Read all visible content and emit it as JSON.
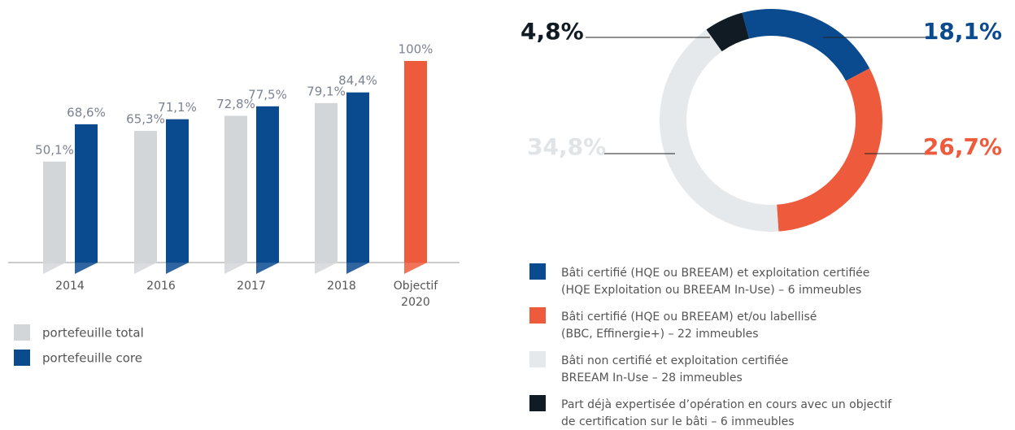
{
  "chart_data": [
    {
      "type": "bar",
      "categories": [
        "2014",
        "2016",
        "2017",
        "2018",
        [
          "Objectif",
          "2020"
        ]
      ],
      "series": [
        {
          "name": "portefeuille total",
          "color": "#d3d6d9",
          "values": [
            50.1,
            65.3,
            72.8,
            79.1,
            null
          ],
          "value_labels": [
            "50,1%",
            "65,3%",
            "72,8%",
            "79,1%",
            null
          ]
        },
        {
          "name": "portefeuille core",
          "color": "#0a4a8f",
          "values": [
            68.6,
            71.1,
            77.5,
            84.4,
            null
          ],
          "value_labels": [
            "68,6%",
            "71,1%",
            "77,5%",
            "84,4%",
            null
          ]
        },
        {
          "color": "#ee5a3c",
          "values": [
            null,
            null,
            null,
            null,
            100
          ],
          "value_labels": [
            null,
            null,
            null,
            null,
            "100%"
          ]
        }
      ],
      "ylim": [
        0,
        100
      ]
    },
    {
      "type": "donut",
      "values": [
        18.1,
        26.7,
        34.8,
        4.8
      ],
      "value_labels": [
        "18,1%",
        "26,7%",
        "34,8%",
        "4,8%"
      ],
      "colors": [
        "#0a4a8f",
        "#ee5a3c",
        "#e6e9ec",
        "#111b24"
      ],
      "label_colors": [
        "#0a4a8f",
        "#ee5a3c",
        "#e1e4e7",
        "#111b24"
      ],
      "labels": [
        [
          "Bâti certifié (HQE ou BREEAM) et exploitation certifiée",
          "(HQE Exploitation ou BREEAM In-Use) – 6 immeubles"
        ],
        [
          "Bâti certifié (HQE ou BREEAM) et/ou labellisé",
          "(BBC, Effinergie+) – 22 immeubles"
        ],
        [
          "Bâti non certifié et exploitation certifiée",
          "BREEAM In-Use – 28 immeubles"
        ],
        [
          "Part déjà expertisée d’opération en cours avec un objectif",
          "de certification sur le bâti – 6 immeubles"
        ]
      ]
    }
  ]
}
